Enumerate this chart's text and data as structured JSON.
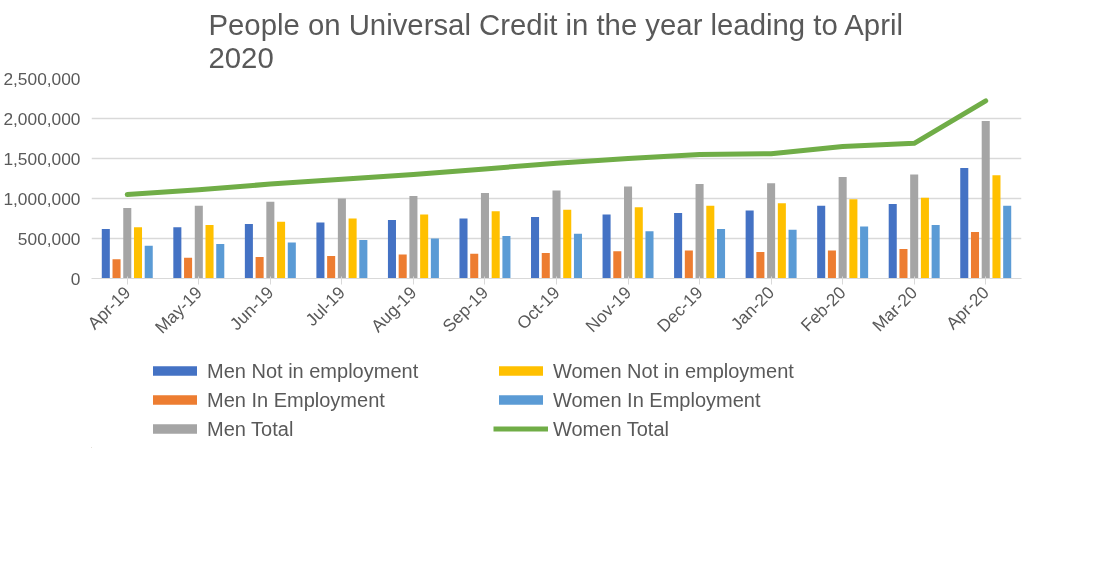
{
  "chart_data": {
    "type": "bar",
    "title": "People on Universal Credit in the year leading to April 2020",
    "categories": [
      "Apr-19",
      "May-19",
      "Jun-19",
      "Jul-19",
      "Aug-19",
      "Sep-19",
      "Oct-19",
      "Nov-19",
      "Dec-19",
      "Jan-20",
      "Feb-20",
      "Mar-20",
      "Apr-20"
    ],
    "series": [
      {
        "name": "Men Not in employment",
        "color": "#4472c4",
        "values": [
          620000,
          640000,
          680000,
          700000,
          730000,
          750000,
          770000,
          800000,
          820000,
          850000,
          910000,
          930000,
          1380000
        ]
      },
      {
        "name": "Men In Employment",
        "color": "#ed7d31",
        "values": [
          240000,
          260000,
          270000,
          280000,
          300000,
          310000,
          320000,
          340000,
          350000,
          330000,
          350000,
          370000,
          580000
        ]
      },
      {
        "name": "Men Total",
        "color": "#a5a5a5",
        "values": [
          880000,
          910000,
          960000,
          1000000,
          1030000,
          1070000,
          1100000,
          1150000,
          1180000,
          1190000,
          1270000,
          1300000,
          1970000
        ]
      },
      {
        "name": "Women Not in employment",
        "color": "#ffc000",
        "values": [
          640000,
          670000,
          710000,
          750000,
          800000,
          840000,
          860000,
          890000,
          910000,
          940000,
          990000,
          1010000,
          1290000
        ]
      },
      {
        "name": "Women In Employment",
        "color": "#5b9bd5",
        "values": [
          410000,
          430000,
          450000,
          480000,
          500000,
          530000,
          560000,
          590000,
          620000,
          610000,
          650000,
          670000,
          910000
        ]
      },
      {
        "name": "Women Total",
        "color": "#70ad47",
        "type": "line",
        "values": [
          1050000,
          1110000,
          1180000,
          1240000,
          1300000,
          1370000,
          1440000,
          1500000,
          1550000,
          1560000,
          1650000,
          1690000,
          2220000
        ]
      }
    ],
    "ylim": [
      0,
      2500000
    ],
    "yticks": [
      {
        "value": 0,
        "label": "0"
      },
      {
        "value": 500000,
        "label": "500,000"
      },
      {
        "value": 1000000,
        "label": "1,000,000"
      },
      {
        "value": 1500000,
        "label": "1,500,000"
      },
      {
        "value": 2000000,
        "label": "2,000,000"
      },
      {
        "value": 2500000,
        "label": "2,500,000"
      }
    ],
    "grid": "y",
    "legend": "bottom"
  }
}
